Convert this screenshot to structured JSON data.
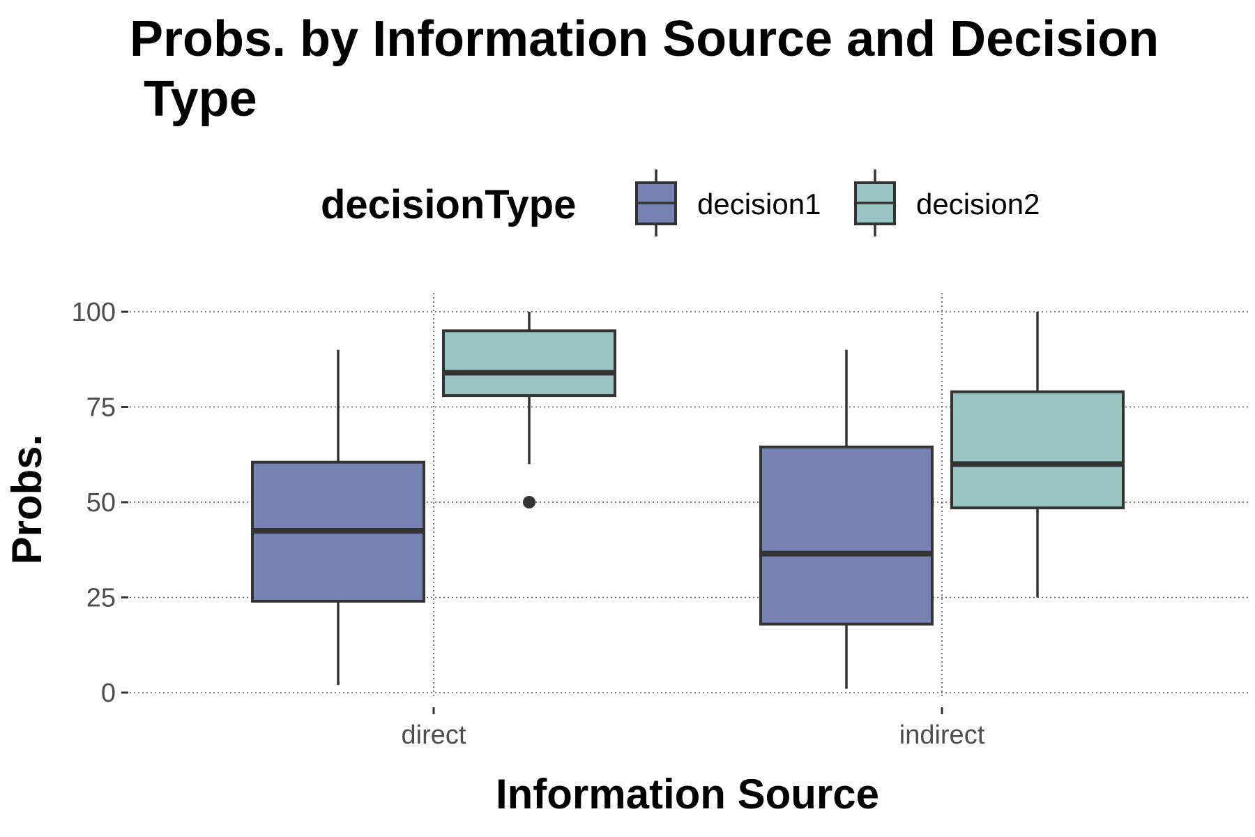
{
  "chart_data": {
    "type": "boxplot",
    "title_lines": [
      "Probs. by Information Source and Decision",
      " Type"
    ],
    "xlabel": "Information Source",
    "ylabel": "Probs.",
    "categories": [
      "direct",
      "indirect"
    ],
    "ylim": [
      0,
      100
    ],
    "yticks": [
      0,
      25,
      50,
      75,
      100
    ],
    "grid": true,
    "legend": {
      "title": "decisionType",
      "position": "top"
    },
    "series": [
      {
        "name": "decision1",
        "color": "#7682B3",
        "boxes": [
          {
            "min": 2,
            "q1": 24,
            "median": 42.5,
            "q3": 60.5,
            "max": 90,
            "outliers": []
          },
          {
            "min": 1,
            "q1": 18,
            "median": 36.5,
            "q3": 64.5,
            "max": 90,
            "outliers": []
          }
        ]
      },
      {
        "name": "decision2",
        "color": "#9AC4C2",
        "boxes": [
          {
            "min": 60,
            "q1": 78,
            "median": 84,
            "q3": 95,
            "max": 100,
            "outliers": [
              50
            ]
          },
          {
            "min": 25,
            "q1": 48.5,
            "median": 60,
            "q3": 79,
            "max": 100,
            "outliers": []
          }
        ]
      }
    ]
  }
}
